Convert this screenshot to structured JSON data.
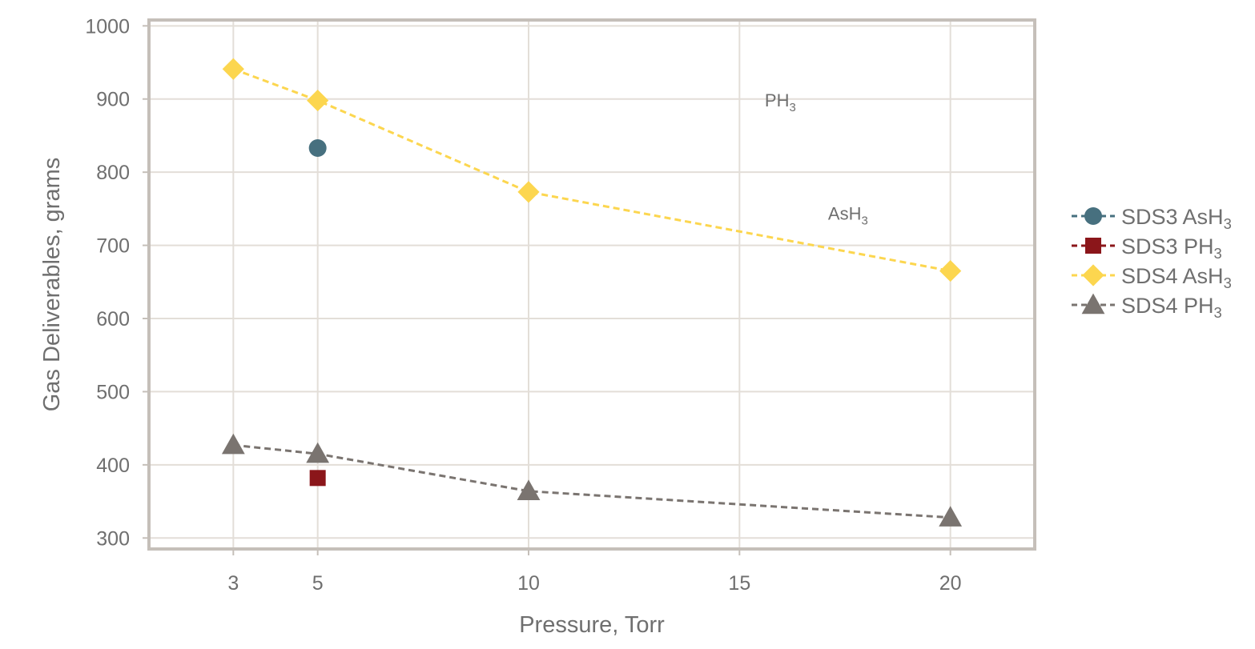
{
  "chart_data": {
    "type": "line",
    "xlabel": "Pressure, Torr",
    "ylabel": "Gas Deliverables, grams",
    "xlim": [
      1,
      22
    ],
    "ylim": [
      285,
      1008
    ],
    "xticks": [
      3,
      5,
      10,
      15,
      20
    ],
    "yticks": [
      300,
      400,
      500,
      600,
      700,
      800,
      900,
      1000
    ],
    "grid": true,
    "legend_position": "right",
    "annotations": [
      {
        "text": "PH",
        "sub": "3",
        "x": 15.6,
        "y": 890
      },
      {
        "text": "AsH",
        "sub": "3",
        "x": 17.1,
        "y": 735
      }
    ],
    "series": [
      {
        "name": "SDS3 AsH",
        "sub": "3",
        "marker": "circle",
        "color": "#47707f",
        "points": [
          [
            5,
            833
          ]
        ]
      },
      {
        "name": "SDS3 PH",
        "sub": "3",
        "marker": "square",
        "color": "#8b161a",
        "points": [
          [
            5,
            382
          ]
        ]
      },
      {
        "name": "SDS4 AsH",
        "sub": "3",
        "marker": "diamond",
        "color": "#fcd64f",
        "points": [
          [
            3,
            941
          ],
          [
            5,
            898
          ],
          [
            10,
            773
          ],
          [
            20,
            665
          ]
        ]
      },
      {
        "name": "SDS4 PH",
        "sub": "3",
        "marker": "triangle",
        "color": "#7a7470",
        "points": [
          [
            3,
            427
          ],
          [
            5,
            415
          ],
          [
            10,
            364
          ],
          [
            20,
            328
          ]
        ]
      }
    ]
  }
}
